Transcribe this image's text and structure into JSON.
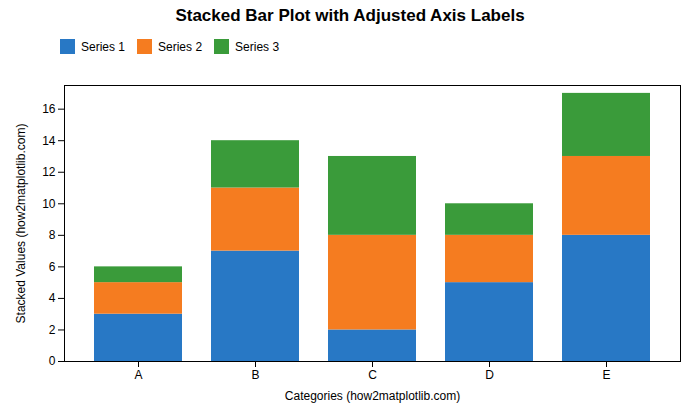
{
  "chart_data": {
    "type": "bar",
    "stacked": true,
    "title": "Stacked Bar Plot with Adjusted Axis Labels",
    "xlabel": "Categories (how2matplotlib.com)",
    "ylabel": "Stacked Values (how2matplotlib.com)",
    "categories": [
      "A",
      "B",
      "C",
      "D",
      "E"
    ],
    "series": [
      {
        "name": "Series 1",
        "color": "#2878c5",
        "values": [
          3,
          7,
          2,
          5,
          8
        ]
      },
      {
        "name": "Series 2",
        "color": "#f57c20",
        "values": [
          2,
          4,
          6,
          3,
          5
        ]
      },
      {
        "name": "Series 3",
        "color": "#3a9b3a",
        "values": [
          1,
          3,
          5,
          2,
          4
        ]
      }
    ],
    "ylim": [
      0,
      17.5
    ],
    "yticks": [
      0,
      2,
      4,
      6,
      8,
      10,
      12,
      14,
      16
    ],
    "grid": false,
    "legend": "upper left"
  }
}
